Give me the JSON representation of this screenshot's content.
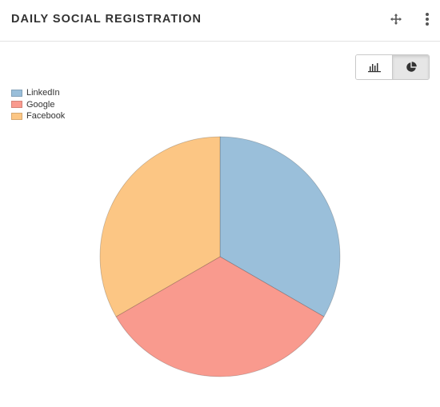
{
  "widget": {
    "title": "DAILY SOCIAL REGISTRATION"
  },
  "colors": {
    "linkedin": "#9ABFDA",
    "google": "#F99A8E",
    "facebook": "#FCC684"
  },
  "chart_data": {
    "type": "pie",
    "title": "",
    "legend_position": "top-left",
    "categories": [
      "LinkedIn",
      "Google",
      "Facebook"
    ],
    "values": [
      1,
      1,
      1
    ],
    "colors": [
      "#9ABFDA",
      "#F99A8E",
      "#FCC684"
    ]
  }
}
